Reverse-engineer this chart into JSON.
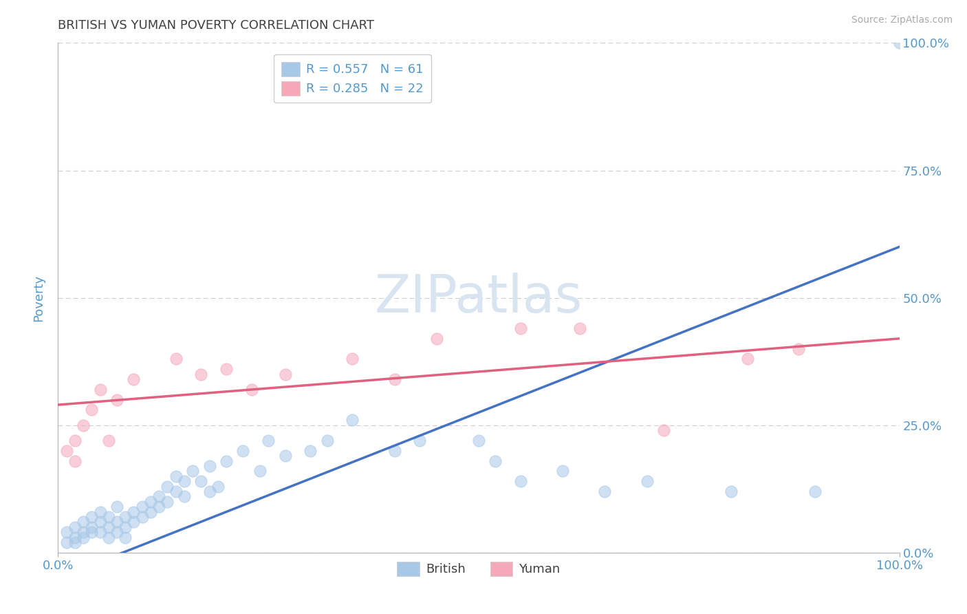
{
  "title": "BRITISH VS YUMAN POVERTY CORRELATION CHART",
  "source_text": "Source: ZipAtlas.com",
  "ylabel": "Poverty",
  "xlim": [
    0.0,
    1.0
  ],
  "ylim": [
    0.0,
    1.0
  ],
  "ytick_labels": [
    "0.0%",
    "25.0%",
    "50.0%",
    "75.0%",
    "100.0%"
  ],
  "ytick_vals": [
    0.0,
    0.25,
    0.5,
    0.75,
    1.0
  ],
  "xtick_labels": [
    "0.0%",
    "100.0%"
  ],
  "xtick_vals": [
    0.0,
    1.0
  ],
  "legend_entries": [
    {
      "label": "R = 0.557   N = 61",
      "color": "#a8c8e8"
    },
    {
      "label": "R = 0.285   N = 22",
      "color": "#f4a8b8"
    }
  ],
  "watermark": "ZIPatlas",
  "watermark_color": "#d8e4f0",
  "british_color": "#a8c8e8",
  "yuman_color": "#f4a8b8",
  "british_line_color": "#4472c4",
  "yuman_line_color": "#e06080",
  "title_color": "#404040",
  "axis_label_color": "#5599cc",
  "source_color": "#aaaaaa",
  "background_color": "#ffffff",
  "grid_color": "#cccccc",
  "british_x": [
    0.01,
    0.01,
    0.02,
    0.02,
    0.02,
    0.03,
    0.03,
    0.03,
    0.04,
    0.04,
    0.04,
    0.05,
    0.05,
    0.05,
    0.06,
    0.06,
    0.06,
    0.07,
    0.07,
    0.07,
    0.08,
    0.08,
    0.08,
    0.09,
    0.09,
    0.1,
    0.1,
    0.11,
    0.11,
    0.12,
    0.12,
    0.13,
    0.13,
    0.14,
    0.14,
    0.15,
    0.15,
    0.16,
    0.17,
    0.18,
    0.18,
    0.19,
    0.2,
    0.22,
    0.24,
    0.25,
    0.27,
    0.3,
    0.32,
    0.35,
    0.4,
    0.43,
    0.5,
    0.52,
    0.55,
    0.6,
    0.65,
    0.7,
    0.8,
    0.9,
    1.0
  ],
  "british_y": [
    0.02,
    0.04,
    0.03,
    0.05,
    0.02,
    0.04,
    0.06,
    0.03,
    0.05,
    0.07,
    0.04,
    0.06,
    0.04,
    0.08,
    0.05,
    0.07,
    0.03,
    0.06,
    0.04,
    0.09,
    0.07,
    0.05,
    0.03,
    0.08,
    0.06,
    0.09,
    0.07,
    0.1,
    0.08,
    0.11,
    0.09,
    0.13,
    0.1,
    0.12,
    0.15,
    0.11,
    0.14,
    0.16,
    0.14,
    0.17,
    0.12,
    0.13,
    0.18,
    0.2,
    0.16,
    0.22,
    0.19,
    0.2,
    0.22,
    0.26,
    0.2,
    0.22,
    0.22,
    0.18,
    0.14,
    0.16,
    0.12,
    0.14,
    0.12,
    0.12,
    1.0
  ],
  "yuman_x": [
    0.01,
    0.02,
    0.02,
    0.03,
    0.04,
    0.05,
    0.06,
    0.07,
    0.09,
    0.14,
    0.17,
    0.2,
    0.23,
    0.27,
    0.35,
    0.4,
    0.45,
    0.55,
    0.62,
    0.72,
    0.82,
    0.88
  ],
  "yuman_y": [
    0.2,
    0.22,
    0.18,
    0.25,
    0.28,
    0.32,
    0.22,
    0.3,
    0.34,
    0.38,
    0.35,
    0.36,
    0.32,
    0.35,
    0.38,
    0.34,
    0.42,
    0.44,
    0.44,
    0.24,
    0.38,
    0.4
  ],
  "british_trend": [
    -0.05,
    0.6
  ],
  "yuman_trend": [
    0.29,
    0.42
  ]
}
